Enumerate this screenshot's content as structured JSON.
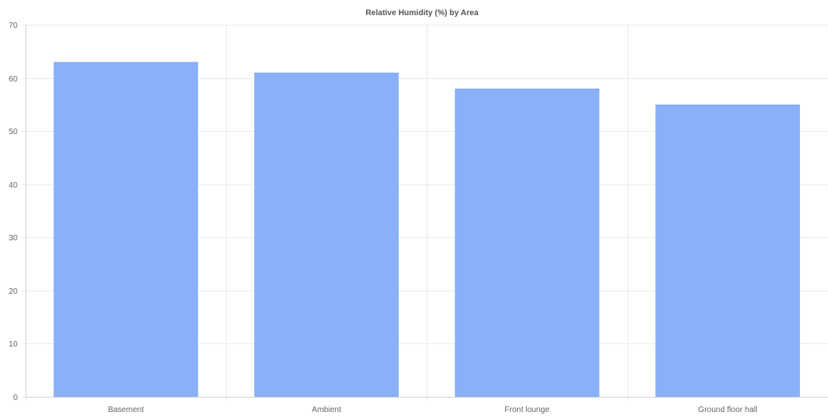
{
  "chart_data": {
    "type": "bar",
    "title": "Relative Humidity (%) by Area",
    "xlabel": "",
    "ylabel": "",
    "categories": [
      "Basement",
      "Ambient",
      "Front lounge",
      "Ground floor hall"
    ],
    "values": [
      63,
      61,
      58,
      55
    ],
    "ylim": [
      0,
      70
    ],
    "yticks": [
      0,
      10,
      20,
      30,
      40,
      50,
      60,
      70
    ],
    "grid": true,
    "legend": "none",
    "colors": {
      "bar": "#89b0f8",
      "grid": "#ebebeb",
      "text": "#666666"
    }
  }
}
